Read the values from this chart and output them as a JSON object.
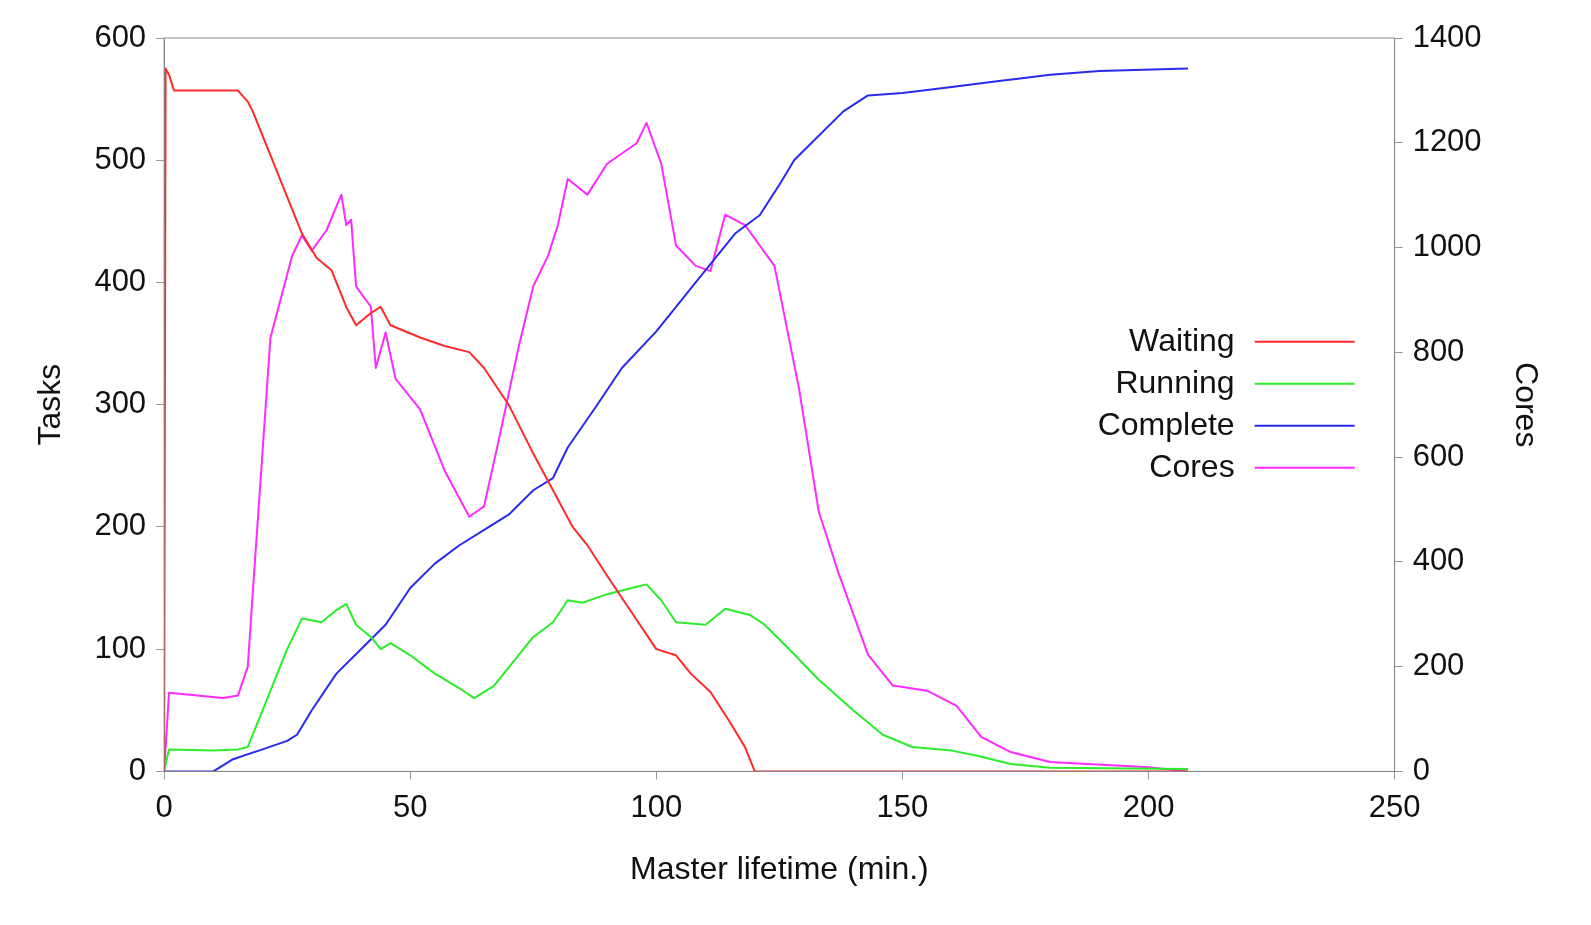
{
  "chart_data": {
    "type": "line",
    "xlabel": "Master lifetime (min.)",
    "ylabel": "Tasks",
    "y2label": "Cores",
    "xlim": [
      0,
      250
    ],
    "xticks": [
      0,
      50,
      100,
      150,
      200,
      250
    ],
    "ylim": [
      0,
      600
    ],
    "yticks": [
      0,
      100,
      200,
      300,
      400,
      500,
      600
    ],
    "y2lim": [
      0,
      1400
    ],
    "y2ticks": [
      0,
      200,
      400,
      600,
      800,
      1000,
      1200,
      1400
    ],
    "grid": false,
    "legend": "right",
    "marker": "none",
    "line_style": "solid",
    "series": [
      {
        "name": "Waiting",
        "color": "#ff2a2a",
        "x": [
          0,
          0.3,
          1,
          2,
          15,
          17,
          18,
          22,
          26,
          28,
          31,
          34,
          37,
          39,
          42,
          44,
          46,
          52,
          57,
          62,
          65,
          70,
          75,
          79,
          83,
          86,
          90,
          95,
          100,
          104,
          107,
          111,
          115,
          118,
          120,
          208
        ],
        "values": [
          0,
          575,
          570,
          557,
          557,
          548,
          540,
          500,
          460,
          440,
          420,
          410,
          380,
          365,
          375,
          380,
          365,
          355,
          348,
          343,
          330,
          300,
          260,
          230,
          200,
          185,
          160,
          130,
          100,
          95,
          80,
          65,
          40,
          20,
          0,
          0
        ]
      },
      {
        "name": "Running",
        "color": "#2aee2a",
        "x": [
          0,
          1,
          10,
          15,
          17,
          20,
          23,
          25,
          28,
          32,
          35,
          37,
          39,
          42,
          44,
          46,
          50,
          55,
          60,
          63,
          67,
          71,
          75,
          79,
          82,
          85,
          90,
          95,
          98,
          101,
          104,
          110,
          114,
          119,
          122,
          127,
          133,
          140,
          146,
          152,
          160,
          165,
          172,
          180,
          208
        ],
        "values": [
          0,
          18,
          17,
          18,
          20,
          50,
          80,
          100,
          125,
          122,
          132,
          137,
          120,
          110,
          100,
          105,
          95,
          80,
          68,
          60,
          70,
          90,
          110,
          122,
          140,
          138,
          145,
          150,
          153,
          140,
          122,
          120,
          133,
          128,
          120,
          100,
          75,
          50,
          30,
          20,
          17,
          13,
          6,
          3,
          2
        ]
      },
      {
        "name": "Complete",
        "color": "#2a2aee",
        "x": [
          0,
          10,
          14,
          20,
          25,
          27,
          30,
          35,
          40,
          45,
          50,
          55,
          60,
          66,
          70,
          75,
          79,
          82,
          88,
          93,
          100,
          106,
          110,
          116,
          121,
          125,
          128,
          133,
          138,
          143,
          150,
          160,
          170,
          180,
          190,
          208
        ],
        "values": [
          0,
          0,
          10,
          18,
          25,
          30,
          50,
          80,
          100,
          120,
          150,
          170,
          185,
          200,
          210,
          230,
          240,
          265,
          300,
          330,
          360,
          390,
          410,
          440,
          455,
          480,
          500,
          520,
          540,
          553,
          555,
          560,
          565,
          570,
          573,
          575
        ]
      },
      {
        "name": "Cores",
        "color": "#ff2aff",
        "axis": "y2",
        "x": [
          0,
          1,
          12,
          15,
          17,
          18,
          21.6,
          26,
          28,
          30,
          33,
          36,
          37,
          38,
          39,
          42,
          43,
          45,
          47,
          52,
          57,
          62,
          65,
          68,
          72,
          75,
          78,
          80,
          82,
          86,
          90,
          96,
          98,
          101,
          104,
          108,
          111,
          114,
          118,
          121,
          124,
          129,
          133,
          137,
          143,
          148,
          155,
          161,
          166,
          172,
          180,
          200,
          208
        ],
        "values": [
          0,
          150,
          140,
          145,
          200,
          340,
          828,
          984,
          1023,
          994,
          1033,
          1101,
          1043,
          1053,
          926,
          887,
          770,
          838,
          750,
          691,
          574,
          486,
          506,
          633,
          809,
          926,
          984,
          1043,
          1131,
          1101,
          1160,
          1199,
          1238,
          1160,
          1004,
          965,
          955,
          1063,
          1043,
          1004,
          965,
          730,
          496,
          379,
          223,
          164,
          154,
          125,
          66,
          37,
          18,
          8,
          0
        ]
      }
    ]
  }
}
